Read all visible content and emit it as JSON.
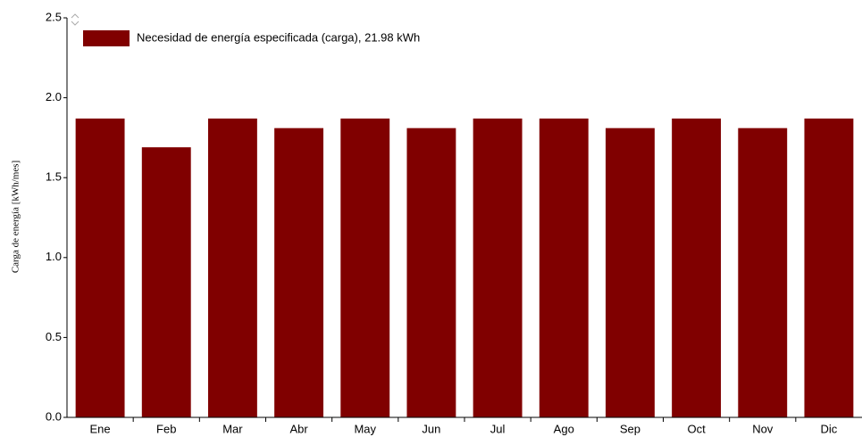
{
  "chart_data": {
    "type": "bar",
    "ylabel": "Carga de energía [kWh/mes]",
    "categories": [
      "Ene",
      "Feb",
      "Mar",
      "Abr",
      "May",
      "Jun",
      "Jul",
      "Ago",
      "Sep",
      "Oct",
      "Nov",
      "Dic"
    ],
    "series": [
      {
        "name": "Necesidad de energía especificada (carga),  21.98 kWh",
        "color": "#800000",
        "values": [
          1.87,
          1.69,
          1.87,
          1.81,
          1.87,
          1.81,
          1.87,
          1.87,
          1.81,
          1.87,
          1.81,
          1.87
        ]
      }
    ],
    "ylim": [
      0,
      2.5
    ],
    "yticks": [
      {
        "value": 0,
        "label": "0.0"
      },
      0.5,
      {
        "value": 1,
        "label": "1.0"
      },
      1.5,
      {
        "value": 2,
        "label": "2.0"
      },
      2.5
    ],
    "legend": "upper left"
  }
}
